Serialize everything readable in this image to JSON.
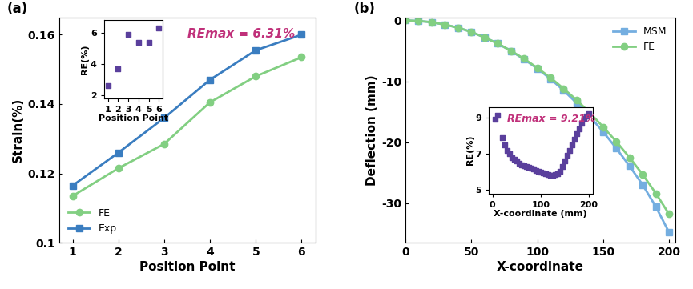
{
  "chart_data": [
    {
      "type": "line",
      "title": "(a)",
      "x_label": "Position Point",
      "y_label": "Strain(%)",
      "x": [
        1,
        2,
        3,
        4,
        5,
        6
      ],
      "series": [
        {
          "name": "FE",
          "color": "#82cf82",
          "marker": "o",
          "line_style": "solid",
          "values": [
            0.1135,
            0.1215,
            0.1285,
            0.1405,
            0.148,
            0.1535
          ]
        },
        {
          "name": "Exp",
          "color": "#3a7dc0",
          "marker": "s",
          "line_style": "solid",
          "values": [
            0.1165,
            0.126,
            0.136,
            0.147,
            0.1555,
            0.16
          ]
        }
      ],
      "xlim": [
        0.7,
        6.3
      ],
      "xticks": [
        1,
        2,
        3,
        4,
        5,
        6
      ],
      "ylim": [
        0.1,
        0.165
      ],
      "yticks": [
        0.1,
        0.12,
        0.14,
        0.16
      ],
      "legend": "lower left",
      "annotations": [
        "REmax = 6.31%"
      ]
    },
    {
      "type": "scatter",
      "x_label": "Position Point",
      "y_label": "RE(%)",
      "x": [
        1,
        2,
        3,
        4,
        5,
        6
      ],
      "values": [
        2.6,
        3.7,
        5.9,
        5.4,
        5.4,
        6.3
      ],
      "color": "#5a3f9c",
      "marker": "s",
      "xlim": [
        0.6,
        6.4
      ],
      "xticks": [
        1,
        2,
        3,
        4,
        5,
        6
      ],
      "ylim": [
        1.8,
        6.8
      ],
      "yticks": [
        2,
        4,
        6
      ]
    },
    {
      "type": "line",
      "title": "(b)",
      "x_label": "X-coordinate",
      "y_label": "Deflection (mm)",
      "x": [
        0,
        10,
        20,
        30,
        40,
        50,
        60,
        70,
        80,
        90,
        100,
        110,
        120,
        130,
        140,
        150,
        160,
        170,
        180,
        190,
        200
      ],
      "series": [
        {
          "name": "MSM",
          "color": "#74aee0",
          "marker": "s",
          "line_style": "solid",
          "values": [
            0,
            -0.1,
            -0.3,
            -0.7,
            -1.2,
            -1.9,
            -2.8,
            -3.8,
            -5.0,
            -6.4,
            -7.9,
            -9.6,
            -11.5,
            -13.6,
            -15.8,
            -18.3,
            -21.0,
            -23.9,
            -27.0,
            -30.6,
            -34.8
          ]
        },
        {
          "name": "FE",
          "color": "#82cf82",
          "marker": "o",
          "line_style": "solid",
          "values": [
            0,
            -0.1,
            -0.3,
            -0.7,
            -1.2,
            -1.9,
            -2.8,
            -3.8,
            -5.0,
            -6.3,
            -7.8,
            -9.4,
            -11.2,
            -13.1,
            -15.2,
            -17.5,
            -19.9,
            -22.5,
            -25.3,
            -28.4,
            -31.8
          ]
        }
      ],
      "xlim": [
        0,
        205
      ],
      "xticks": [
        0,
        50,
        100,
        150,
        200
      ],
      "ylim": [
        -36.5,
        0.5
      ],
      "yticks": [
        0,
        -10,
        -20,
        -30
      ],
      "legend": "upper right"
    },
    {
      "type": "scatter",
      "x_label": "X-coordinate (mm)",
      "y_label": "RE(%)",
      "x": [
        5,
        10,
        20,
        25,
        30,
        35,
        40,
        45,
        50,
        55,
        60,
        65,
        70,
        75,
        80,
        85,
        90,
        95,
        100,
        105,
        110,
        115,
        120,
        125,
        130,
        135,
        140,
        145,
        150,
        155,
        160,
        165,
        170,
        175,
        180,
        185,
        190,
        195,
        200
      ],
      "values": [
        8.9,
        9.15,
        7.9,
        7.5,
        7.2,
        7.0,
        6.8,
        6.7,
        6.6,
        6.5,
        6.4,
        6.35,
        6.3,
        6.25,
        6.2,
        6.15,
        6.1,
        6.05,
        6.0,
        5.95,
        5.9,
        5.85,
        5.8,
        5.8,
        5.85,
        5.9,
        6.05,
        6.3,
        6.6,
        6.9,
        7.2,
        7.5,
        7.8,
        8.1,
        8.4,
        8.7,
        8.95,
        9.1,
        9.21
      ],
      "color": "#5a3f9c",
      "marker": "s",
      "xlim": [
        -8,
        208
      ],
      "xticks": [
        0,
        100,
        200
      ],
      "ylim": [
        4.8,
        9.6
      ],
      "yticks": [
        5,
        7,
        9
      ],
      "annotations": [
        "REmax = 9.21%"
      ]
    }
  ]
}
